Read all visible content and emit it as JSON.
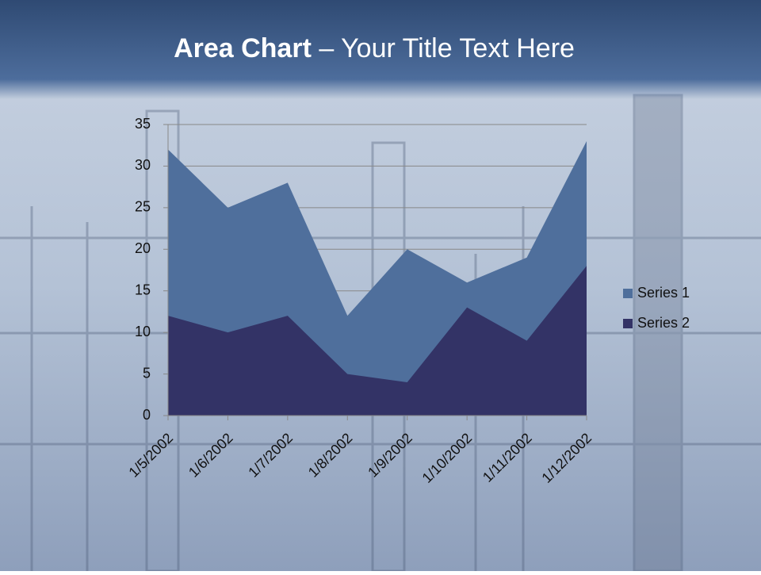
{
  "chart_data": {
    "type": "area",
    "title": {
      "bold": "Area Chart",
      "text": "– Your Title Text Here"
    },
    "categories": [
      "1/5/2002",
      "1/6/2002",
      "1/7/2002",
      "1/8/2002",
      "1/9/2002",
      "1/10/2002",
      "1/11/2002",
      "1/12/2002"
    ],
    "series": [
      {
        "name": "Series 1",
        "color": "#4f6f9c",
        "values": [
          32,
          25,
          28,
          12,
          20,
          16,
          19,
          33
        ]
      },
      {
        "name": "Series 2",
        "color": "#333366",
        "values": [
          12,
          10,
          12,
          5,
          4,
          13,
          9,
          18
        ]
      }
    ],
    "ylim": [
      0,
      35
    ],
    "yticks": [
      0,
      5,
      10,
      15,
      20,
      25,
      30,
      35
    ],
    "grid": true,
    "legend": "right"
  }
}
